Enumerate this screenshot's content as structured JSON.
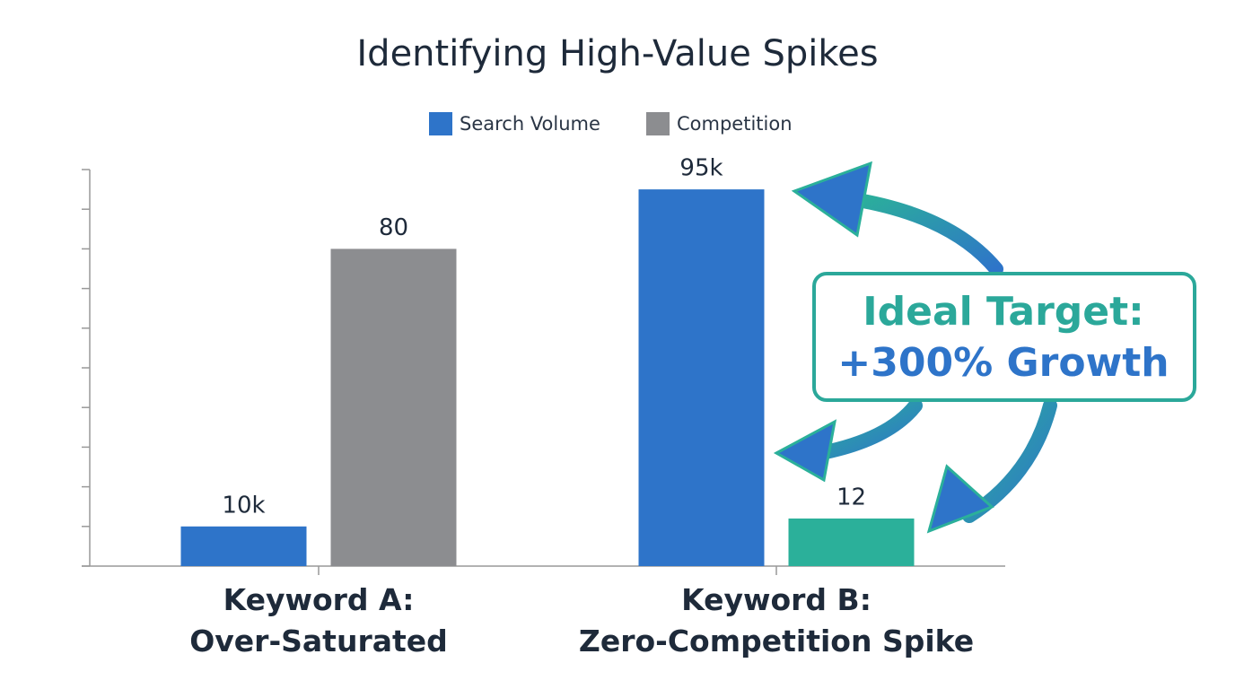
{
  "chart_data": {
    "type": "bar",
    "title": "Identifying High-Value Spikes",
    "categories": [
      "Keyword A:\nOver-Saturated",
      "Keyword B:\nZero-Competition Spike"
    ],
    "series": [
      {
        "name": "Search Volume",
        "color": "#2e74c9",
        "values": [
          10000,
          95000
        ],
        "value_labels": [
          "10k",
          "95k"
        ],
        "axis": "y2"
      },
      {
        "name": "Competition",
        "color": "#8c8d90",
        "point_colors": [
          "#8c8d90",
          "#2bb09a"
        ],
        "values": [
          80,
          12
        ]
      }
    ],
    "ylim": [
      0,
      100
    ],
    "yticks": [
      0,
      10,
      20,
      30,
      40,
      50,
      60,
      70,
      80,
      90,
      100
    ],
    "y2lim": [
      0,
      100000
    ],
    "annotations": [
      "Ideal Target:",
      "+300% Growth"
    ]
  }
}
